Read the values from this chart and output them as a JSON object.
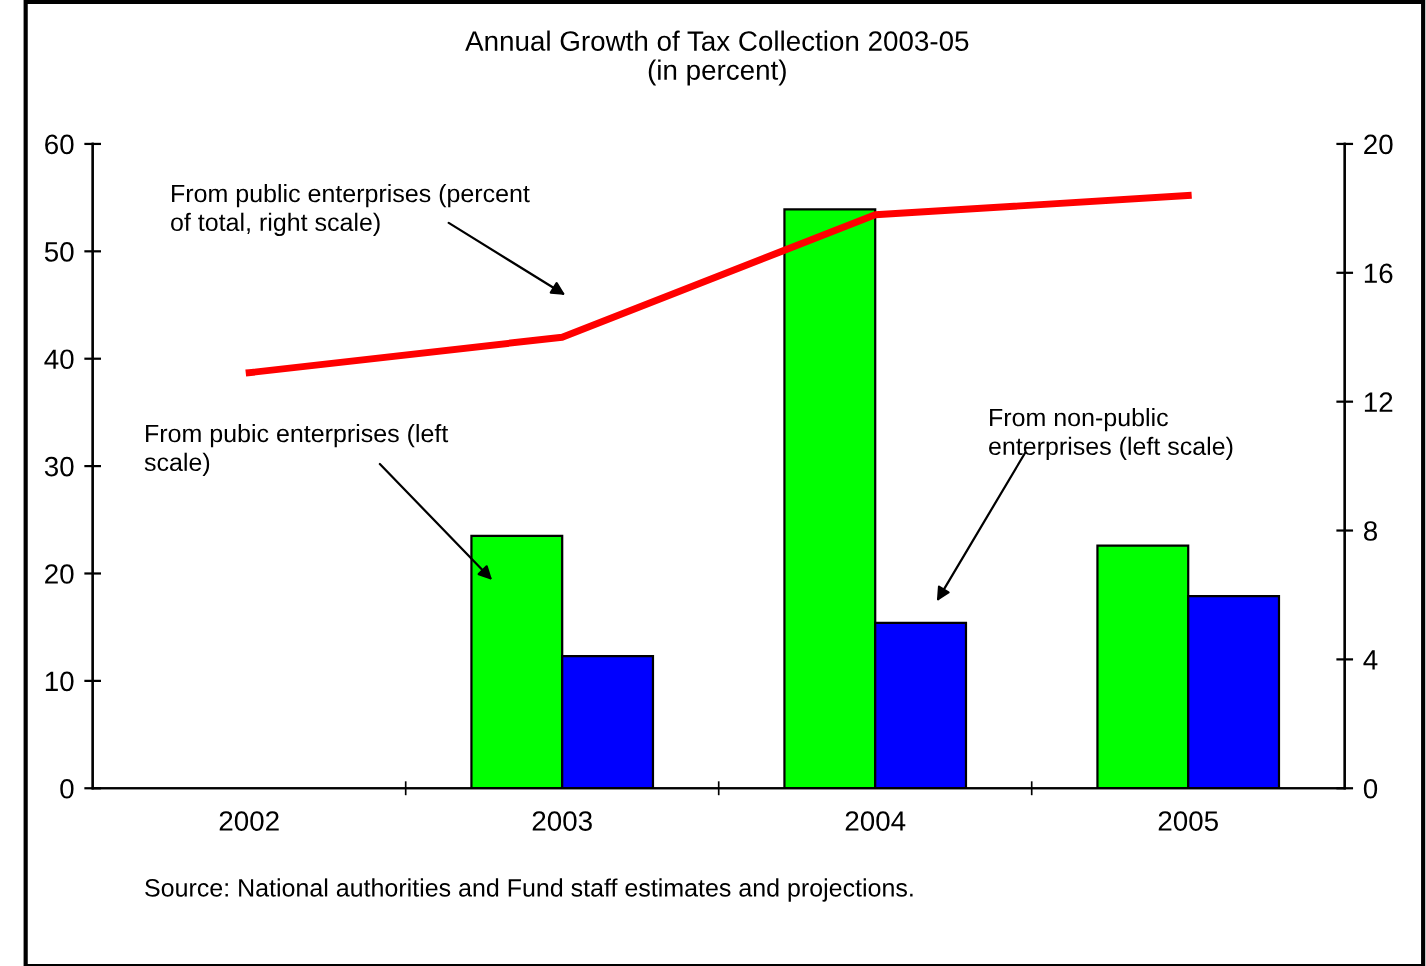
{
  "chart_data": {
    "type": "bar",
    "title": "Annual Growth of Tax Collection 2003-05",
    "subtitle": "(in percent)",
    "categories": [
      "2002",
      "2003",
      "2004",
      "2005"
    ],
    "series": [
      {
        "color": "#00ff00",
        "values": [
          null,
          23.5,
          53.9,
          22.6
        ]
      },
      {
        "color": "#0000ff",
        "values": [
          null,
          12.3,
          15.4,
          17.9
        ]
      },
      {
        "type": "line",
        "axis": "y2",
        "color": "#ff0000",
        "values": [
          12.9,
          14.0,
          17.8,
          18.4
        ]
      }
    ],
    "ylim": [
      0,
      60
    ],
    "yticks": [
      0,
      10,
      20,
      30,
      40,
      50,
      60
    ],
    "y2lim": [
      0,
      20
    ],
    "y2ticks": [
      0,
      4,
      8,
      12,
      16,
      20
    ],
    "grid": false,
    "legend": false,
    "marker": "none",
    "line_style": "solid",
    "annotations": [
      "From public enterprises (percent\nof total, right scale)",
      "From pubic enterprises (left\nscale)",
      "From non-public\nenterprises (left scale)",
      "Source: National authorities and Fund staff estimates and projections."
    ]
  }
}
